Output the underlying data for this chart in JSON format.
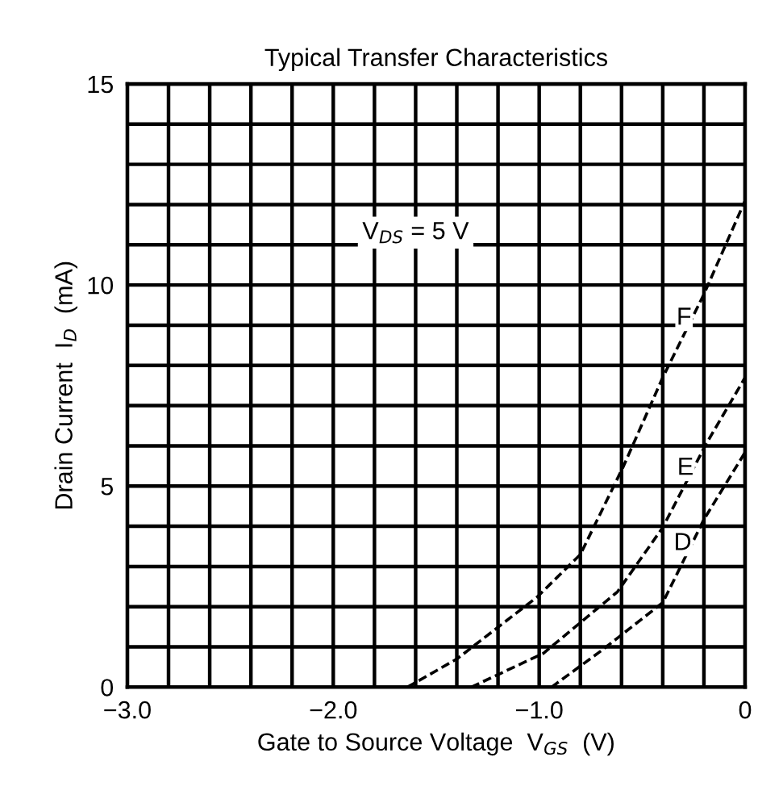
{
  "chart_data": {
    "type": "line",
    "title": "Typical Transfer Characteristics",
    "xlabel": "Gate to Source Voltage  V$_{GS}$  (V)",
    "ylabel": "Drain Current  I$_{D}$  (mA)",
    "xlim": [
      -3.0,
      0
    ],
    "ylim": [
      0,
      15
    ],
    "xticks": [
      {
        "value": -3.0,
        "label": "−3.0"
      },
      {
        "value": -2.8,
        "label": null
      },
      {
        "value": -2.6,
        "label": null
      },
      {
        "value": -2.4,
        "label": null
      },
      {
        "value": -2.2,
        "label": null
      },
      {
        "value": -2.0,
        "label": "−2.0"
      },
      {
        "value": -1.8,
        "label": null
      },
      {
        "value": -1.6,
        "label": null
      },
      {
        "value": -1.4,
        "label": null
      },
      {
        "value": -1.2,
        "label": null
      },
      {
        "value": -1.0,
        "label": "−1.0"
      },
      {
        "value": -0.8,
        "label": null
      },
      {
        "value": -0.6,
        "label": null
      },
      {
        "value": -0.4,
        "label": null
      },
      {
        "value": -0.2,
        "label": null
      },
      0
    ],
    "yticks": [
      0,
      {
        "value": 1,
        "label": null
      },
      {
        "value": 2,
        "label": null
      },
      {
        "value": 3,
        "label": null
      },
      {
        "value": 4,
        "label": null
      },
      5,
      {
        "value": 6,
        "label": null
      },
      {
        "value": 7,
        "label": null
      },
      {
        "value": 8,
        "label": null
      },
      {
        "value": 9,
        "label": null
      },
      10,
      {
        "value": 11,
        "label": null
      },
      {
        "value": 12,
        "label": null
      },
      {
        "value": 13,
        "label": null
      },
      {
        "value": 14,
        "label": null
      },
      15
    ],
    "grid": true,
    "legend": false,
    "line_style": "dashed",
    "marker": "none",
    "annotations": [
      "V$_{DS}$ = 5 V"
    ],
    "series": [
      {
        "name": "F",
        "color": "#000000",
        "x": [
          -1.64,
          -1.4,
          -1.01,
          -0.8,
          -0.59,
          -0.4,
          -0.2,
          0
        ],
        "values": [
          0,
          0.7,
          2.24,
          3.3,
          5.5,
          7.7,
          9.77,
          12.1
        ]
      },
      {
        "name": "E",
        "color": "#000000",
        "x": [
          -1.33,
          -0.98,
          -0.62,
          -0.4,
          -0.19,
          0
        ],
        "values": [
          0,
          0.84,
          2.37,
          3.97,
          6.04,
          7.7
        ]
      },
      {
        "name": "D",
        "color": "#000000",
        "x": [
          -0.94,
          -0.7,
          -0.4,
          -0.2,
          0
        ],
        "values": [
          0,
          0.9,
          2.1,
          4.17,
          5.84
        ]
      }
    ]
  }
}
